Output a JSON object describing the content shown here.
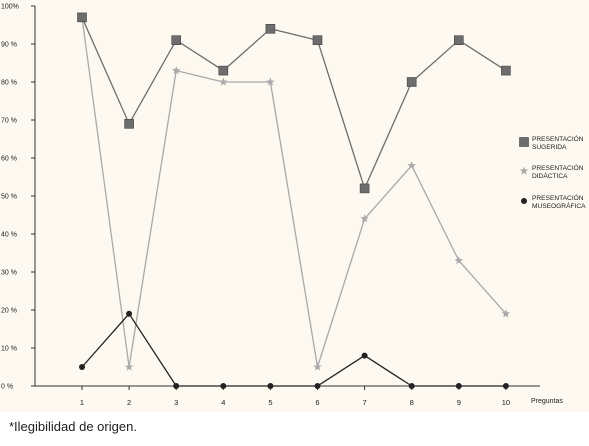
{
  "caption": "*Ilegibilidad de origen.",
  "chart_data": {
    "type": "line",
    "title": "",
    "xlabel": "Preguntas",
    "ylabel": "",
    "ylim": [
      0,
      100
    ],
    "x": [
      1,
      2,
      3,
      4,
      5,
      6,
      7,
      8,
      9,
      10
    ],
    "x_tick_labels": [
      "1",
      "2",
      "3",
      "4",
      "5",
      "6",
      "7",
      "8",
      "9",
      "10"
    ],
    "y_ticks": [
      0,
      10,
      20,
      30,
      40,
      50,
      60,
      70,
      80,
      90,
      100
    ],
    "y_tick_labels": [
      "0 %",
      "10 %",
      "20 %",
      "30 %",
      "40 %",
      "50 %",
      "60 %",
      "70 %",
      "80 %",
      "90 %",
      "100%"
    ],
    "grid": false,
    "legend_position": "right",
    "series": [
      {
        "name": "PRESENTACIÓN SUGERIDA",
        "marker": "square",
        "color": "#6d6d6d",
        "values": [
          97,
          69,
          91,
          83,
          94,
          91,
          52,
          80,
          91,
          83
        ]
      },
      {
        "name": "PRESENTACIÓN DIDÁCTICA",
        "marker": "star",
        "color": "#a9a9a9",
        "values": [
          97,
          5,
          83,
          80,
          80,
          5,
          44,
          58,
          33,
          19
        ]
      },
      {
        "name": "PRESENTACIÓN MUSEOGRÁFICA",
        "marker": "circle",
        "color": "#222222",
        "values": [
          5,
          19,
          0,
          0,
          0,
          0,
          8,
          0,
          0,
          0
        ]
      }
    ]
  }
}
